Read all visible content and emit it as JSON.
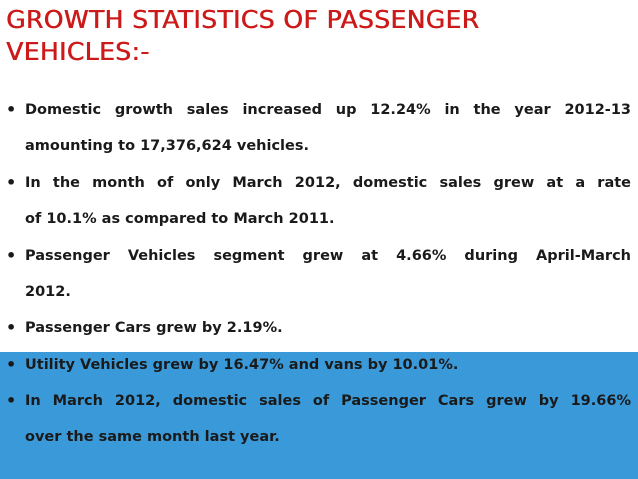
{
  "slide": {
    "title_lines": [
      "Growth Statistics of Passenger",
      "Vehicles:-"
    ],
    "bullet_glyph": "•",
    "accent_color": "#3a9ad9",
    "title_color": "#cc1a1a",
    "bullets": [
      {
        "text": "Domestic growth sales increased up 12.24% in the year 2012-13 amounting to 17,376,624 vehicles.",
        "lines": [
          "Domestic growth sales increased up 12.24% in the year 2012-13",
          "amounting to 17,376,624 vehicles."
        ]
      },
      {
        "text": "In the month of only March 2012, domestic sales grew at a rate of 10.1% as compared to March 2011.",
        "lines": [
          "In the month of only March 2012, domestic sales grew at a rate",
          "of 10.1% as compared to March 2011."
        ]
      },
      {
        "text": "Passenger Vehicles segment grew at 4.66% during April-March 2012.",
        "lines": [
          "Passenger Vehicles segment grew at 4.66% during April-March",
          "2012."
        ]
      },
      {
        "text": "Passenger Cars grew by 2.19%.",
        "lines": [
          "Passenger Cars grew by 2.19%."
        ]
      },
      {
        "text": "Utility Vehicles grew by 16.47% and vans by 10.01%.",
        "lines": [
          "Utility Vehicles grew by 16.47% and vans by 10.01%."
        ]
      },
      {
        "text": "In March 2012, domestic sales of Passenger Cars grew by 19.66% over the same month last year.",
        "lines": [
          "In March 2012, domestic sales of Passenger Cars grew by 19.66%",
          "over the same month last year."
        ]
      }
    ]
  }
}
